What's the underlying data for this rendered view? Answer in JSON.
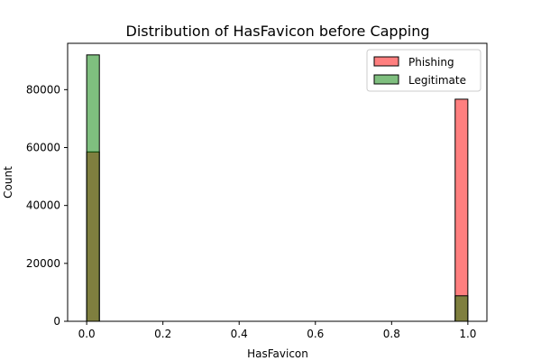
{
  "chart_data": {
    "type": "bar",
    "title": "Distribution of HasFavicon before Capping",
    "xlabel": "HasFavicon",
    "ylabel": "Count",
    "xlim": [
      -0.05,
      1.05
    ],
    "ylim": [
      0,
      96000
    ],
    "xticks": [
      0.0,
      0.2,
      0.4,
      0.6,
      0.8,
      1.0
    ],
    "xtick_labels": [
      "0.0",
      "0.2",
      "0.4",
      "0.6",
      "0.8",
      "1.0"
    ],
    "yticks": [
      0,
      20000,
      40000,
      60000,
      80000
    ],
    "ytick_labels": [
      "0",
      "20000",
      "40000",
      "60000",
      "80000"
    ],
    "bin_edges": [
      0.0,
      0.0333,
      0.9667,
      1.0
    ],
    "legend_position": "top-right",
    "grid": false,
    "series": [
      {
        "name": "Phishing",
        "color": "#ff0000",
        "alpha": 0.5,
        "bins": [
          {
            "x0": 0.0,
            "x1": 0.0333,
            "value": 58500
          },
          {
            "x0": 0.9667,
            "x1": 1.0,
            "value": 76700
          }
        ]
      },
      {
        "name": "Legitimate",
        "color": "#008000",
        "alpha": 0.5,
        "bins": [
          {
            "x0": 0.0,
            "x1": 0.0333,
            "value": 92000
          },
          {
            "x0": 0.9667,
            "x1": 1.0,
            "value": 8800
          }
        ]
      }
    ]
  }
}
